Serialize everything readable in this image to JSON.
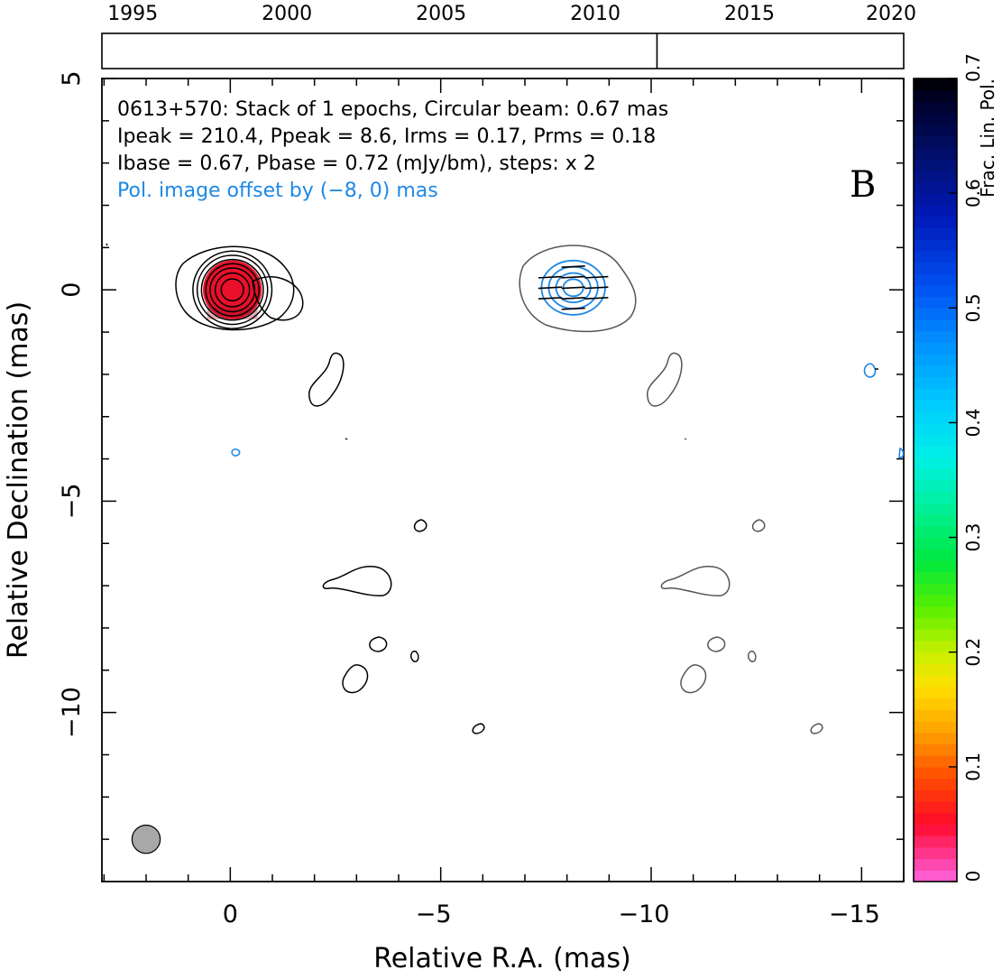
{
  "chart_data": {
    "type": "contour",
    "source": "0613+570",
    "panel_label": "B",
    "info": {
      "line1": "0613+570: Stack of 1 epochs, Circular beam: 0.67 mas",
      "line2": "Ipeak = 210.4, Ppeak = 8.6, Irms = 0.17, Prms = 0.18",
      "line3": "Ibase = 0.67, Pbase = 0.72 (mJy/bm), steps: x 2",
      "line4": "Pol. image offset by (−8, 0) mas"
    },
    "xlabel": "Relative R.A. (mas)",
    "ylabel": "Relative Declination (mas)",
    "xlim": [
      3.05,
      -16
    ],
    "ylim": [
      -14,
      5
    ],
    "xticks": [
      0,
      -5,
      -10,
      -15
    ],
    "xticklabels": [
      "0",
      "−5",
      "−10",
      "−15"
    ],
    "yticks": [
      5,
      0,
      -5,
      -10
    ],
    "yticklabels": [
      "5",
      "0",
      "−5",
      "−10"
    ],
    "timeline": {
      "years": [
        "1995",
        "2000",
        "2005",
        "2010",
        "2015",
        "2020"
      ],
      "year_values": [
        1995,
        2000,
        2005,
        2010,
        2015,
        2020
      ],
      "range": [
        1994,
        2020
      ],
      "epochs": [
        2012.0
      ]
    },
    "colorbar": {
      "label": "Frac. Lin. Pol.",
      "range": [
        0,
        0.7
      ],
      "ticks": [
        0,
        0.1,
        0.2,
        0.3,
        0.4,
        0.5,
        0.6,
        0.7
      ],
      "ticklabels": [
        "0",
        "0.1",
        "0.2",
        "0.3",
        "0.4",
        "0.5",
        "0.6",
        "0.7"
      ]
    },
    "beam": {
      "ra": 2.0,
      "dec": -13.0,
      "diameter_mas": 0.67
    },
    "core_contour_radii_mas": [
      0.26,
      0.4,
      0.52,
      0.62,
      0.72,
      0.82,
      0.92
    ],
    "pol_contour_radii_mas": [
      0.22,
      0.38,
      0.54,
      0.7
    ],
    "evpa_deg": 3,
    "colors": {
      "stokes_i": "#000000",
      "pol_i_overlay": "#555555",
      "pol_contours": "#1e88e5",
      "frac_pol_core": "#e8102a",
      "beam_fill": "#a8a8a8",
      "info_blue": "#1e88e5"
    }
  }
}
